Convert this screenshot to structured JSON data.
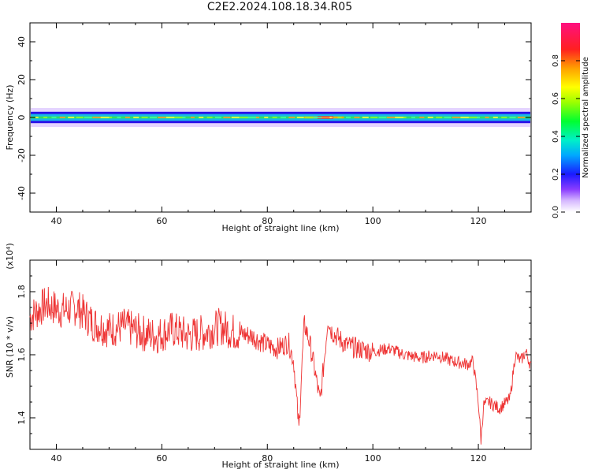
{
  "title": "C2E2.2024.108.18.34.R05",
  "colors": {
    "snr_line": "#ee3333",
    "axis": "#000000"
  },
  "chart_data": [
    {
      "type": "heatmap",
      "xlabel": "Height of straight line (km)",
      "ylabel": "Frequency (Hz)",
      "xlim": [
        35,
        130
      ],
      "ylim": [
        -50,
        50
      ],
      "x_ticks": [
        40,
        60,
        80,
        100,
        120
      ],
      "y_ticks": [
        -40,
        -20,
        0,
        20,
        40
      ],
      "colorbar": {
        "label": "Normalized spectral amplitude",
        "range": [
          0,
          1
        ],
        "ticks": [
          0.0,
          0.2,
          0.4,
          0.6,
          0.8
        ],
        "tick_labels": [
          "0.0",
          "0.2",
          "0.4",
          "0.6",
          "0.8"
        ],
        "colormap": "rainbow"
      },
      "band": {
        "center_hz": 0,
        "half_width_hz": 3,
        "outer_halo_hz": 5,
        "peak_height_km": 91
      }
    },
    {
      "type": "line",
      "xlabel": "Height of straight line (km)",
      "ylabel": "SNR (10 * v/v)",
      "y_scale_label": "(x10⁴)",
      "xlim": [
        35,
        130
      ],
      "ylim": [
        1.3,
        1.9
      ],
      "x_ticks": [
        40,
        60,
        80,
        100,
        120
      ],
      "y_ticks": [
        1.4,
        1.6,
        1.8
      ],
      "y_tick_labels": [
        "1.4",
        "1.6",
        "1.8"
      ],
      "series": [
        {
          "x": [
            35,
            38,
            41,
            44,
            47,
            50,
            53,
            56,
            59,
            62,
            65,
            68,
            71,
            74,
            77,
            80,
            82,
            84,
            85,
            86,
            86.5,
            87,
            88,
            89,
            90,
            91,
            91.5,
            92,
            93,
            95,
            97,
            100,
            103,
            106,
            109,
            112,
            115,
            118,
            119,
            120,
            120.5,
            121,
            122,
            124,
            126,
            127,
            128,
            129,
            130
          ],
          "values": [
            1.72,
            1.76,
            1.74,
            1.75,
            1.7,
            1.68,
            1.69,
            1.67,
            1.66,
            1.68,
            1.66,
            1.67,
            1.69,
            1.67,
            1.66,
            1.63,
            1.62,
            1.64,
            1.58,
            1.36,
            1.55,
            1.7,
            1.64,
            1.55,
            1.45,
            1.62,
            1.72,
            1.68,
            1.66,
            1.63,
            1.62,
            1.61,
            1.62,
            1.6,
            1.59,
            1.6,
            1.58,
            1.57,
            1.58,
            1.45,
            1.33,
            1.44,
            1.45,
            1.43,
            1.46,
            1.6,
            1.58,
            1.61,
            1.56
          ]
        }
      ]
    }
  ]
}
